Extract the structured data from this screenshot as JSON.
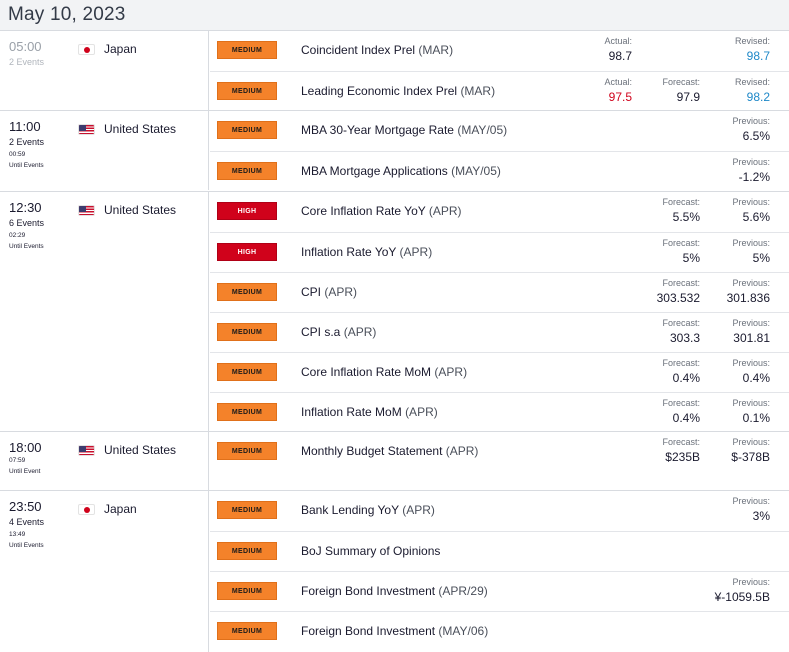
{
  "date": "May 10, 2023",
  "groups": [
    {
      "time": "05:00",
      "events": "2 Events",
      "until": "",
      "until_label": "",
      "country": "Japan",
      "flag": "jp",
      "past": true,
      "rows": [
        {
          "impact": "MEDIUM",
          "level": "medium",
          "name": "Coincident Index Prel",
          "period": "(MAR)",
          "actual": {
            "label": "Actual:",
            "value": "98.7"
          },
          "forecast": null,
          "previous": {
            "label": "Revised:",
            "value": "98.7",
            "color": "blue"
          }
        },
        {
          "impact": "MEDIUM",
          "level": "medium",
          "name": "Leading Economic Index Prel",
          "period": "(MAR)",
          "actual": {
            "label": "Actual:",
            "value": "97.5",
            "color": "red"
          },
          "forecast": {
            "label": "Forecast:",
            "value": "97.9"
          },
          "previous": {
            "label": "Revised:",
            "value": "98.2",
            "color": "blue"
          }
        }
      ]
    },
    {
      "time": "11:00",
      "events": "2 Events",
      "until": "00:59",
      "until_label": "Until Events",
      "country": "United States",
      "flag": "us",
      "past": false,
      "rows": [
        {
          "impact": "MEDIUM",
          "level": "medium",
          "name": "MBA 30-Year Mortgage Rate",
          "period": "(MAY/05)",
          "actual": null,
          "forecast": null,
          "previous": {
            "label": "Previous:",
            "value": "6.5%"
          }
        },
        {
          "impact": "MEDIUM",
          "level": "medium",
          "name": "MBA Mortgage Applications",
          "period": "(MAY/05)",
          "actual": null,
          "forecast": null,
          "previous": {
            "label": "Previous:",
            "value": "-1.2%"
          }
        }
      ]
    },
    {
      "time": "12:30",
      "events": "6 Events",
      "until": "02:29",
      "until_label": "Until Events",
      "country": "United States",
      "flag": "us",
      "past": false,
      "rows": [
        {
          "impact": "HIGH",
          "level": "high",
          "name": "Core Inflation Rate YoY",
          "period": "(APR)",
          "actual": null,
          "forecast": {
            "label": "Forecast:",
            "value": "5.5%"
          },
          "previous": {
            "label": "Previous:",
            "value": "5.6%"
          }
        },
        {
          "impact": "HIGH",
          "level": "high",
          "name": "Inflation Rate YoY",
          "period": "(APR)",
          "actual": null,
          "forecast": {
            "label": "Forecast:",
            "value": "5%"
          },
          "previous": {
            "label": "Previous:",
            "value": "5%"
          }
        },
        {
          "impact": "MEDIUM",
          "level": "medium",
          "name": "CPI",
          "period": "(APR)",
          "actual": null,
          "forecast": {
            "label": "Forecast:",
            "value": "303.532"
          },
          "previous": {
            "label": "Previous:",
            "value": "301.836"
          }
        },
        {
          "impact": "MEDIUM",
          "level": "medium",
          "name": "CPI s.a",
          "period": "(APR)",
          "actual": null,
          "forecast": {
            "label": "Forecast:",
            "value": "303.3"
          },
          "previous": {
            "label": "Previous:",
            "value": "301.81"
          }
        },
        {
          "impact": "MEDIUM",
          "level": "medium",
          "name": "Core Inflation Rate MoM",
          "period": "(APR)",
          "actual": null,
          "forecast": {
            "label": "Forecast:",
            "value": "0.4%"
          },
          "previous": {
            "label": "Previous:",
            "value": "0.4%"
          }
        },
        {
          "impact": "MEDIUM",
          "level": "medium",
          "name": "Inflation Rate MoM",
          "period": "(APR)",
          "actual": null,
          "forecast": {
            "label": "Forecast:",
            "value": "0.4%"
          },
          "previous": {
            "label": "Previous:",
            "value": "0.1%"
          }
        }
      ]
    },
    {
      "time": "18:00",
      "events": "",
      "until": "07:59",
      "until_label": "Until Event",
      "country": "United States",
      "flag": "us",
      "past": false,
      "rows": [
        {
          "impact": "MEDIUM",
          "level": "medium",
          "name": "Monthly Budget Statement",
          "period": "(APR)",
          "actual": null,
          "forecast": {
            "label": "Forecast:",
            "value": "$235B"
          },
          "previous": {
            "label": "Previous:",
            "value": "$-378B"
          },
          "tall": true
        }
      ]
    },
    {
      "time": "23:50",
      "events": "4 Events",
      "until": "13:49",
      "until_label": "Until Events",
      "country": "Japan",
      "flag": "jp",
      "past": false,
      "rows": [
        {
          "impact": "MEDIUM",
          "level": "medium",
          "name": "Bank Lending YoY",
          "period": "(APR)",
          "actual": null,
          "forecast": null,
          "previous": {
            "label": "Previous:",
            "value": "3%"
          }
        },
        {
          "impact": "MEDIUM",
          "level": "medium",
          "name": "BoJ Summary of Opinions",
          "period": "",
          "actual": null,
          "forecast": null,
          "previous": null
        },
        {
          "impact": "MEDIUM",
          "level": "medium",
          "name": "Foreign Bond Investment",
          "period": "(APR/29)",
          "actual": null,
          "forecast": null,
          "previous": {
            "label": "Previous:",
            "value": "¥-1059.5B"
          }
        },
        {
          "impact": "MEDIUM",
          "level": "medium",
          "name": "Foreign Bond Investment",
          "period": "(MAY/06)",
          "actual": null,
          "forecast": null,
          "previous": null
        }
      ]
    }
  ]
}
